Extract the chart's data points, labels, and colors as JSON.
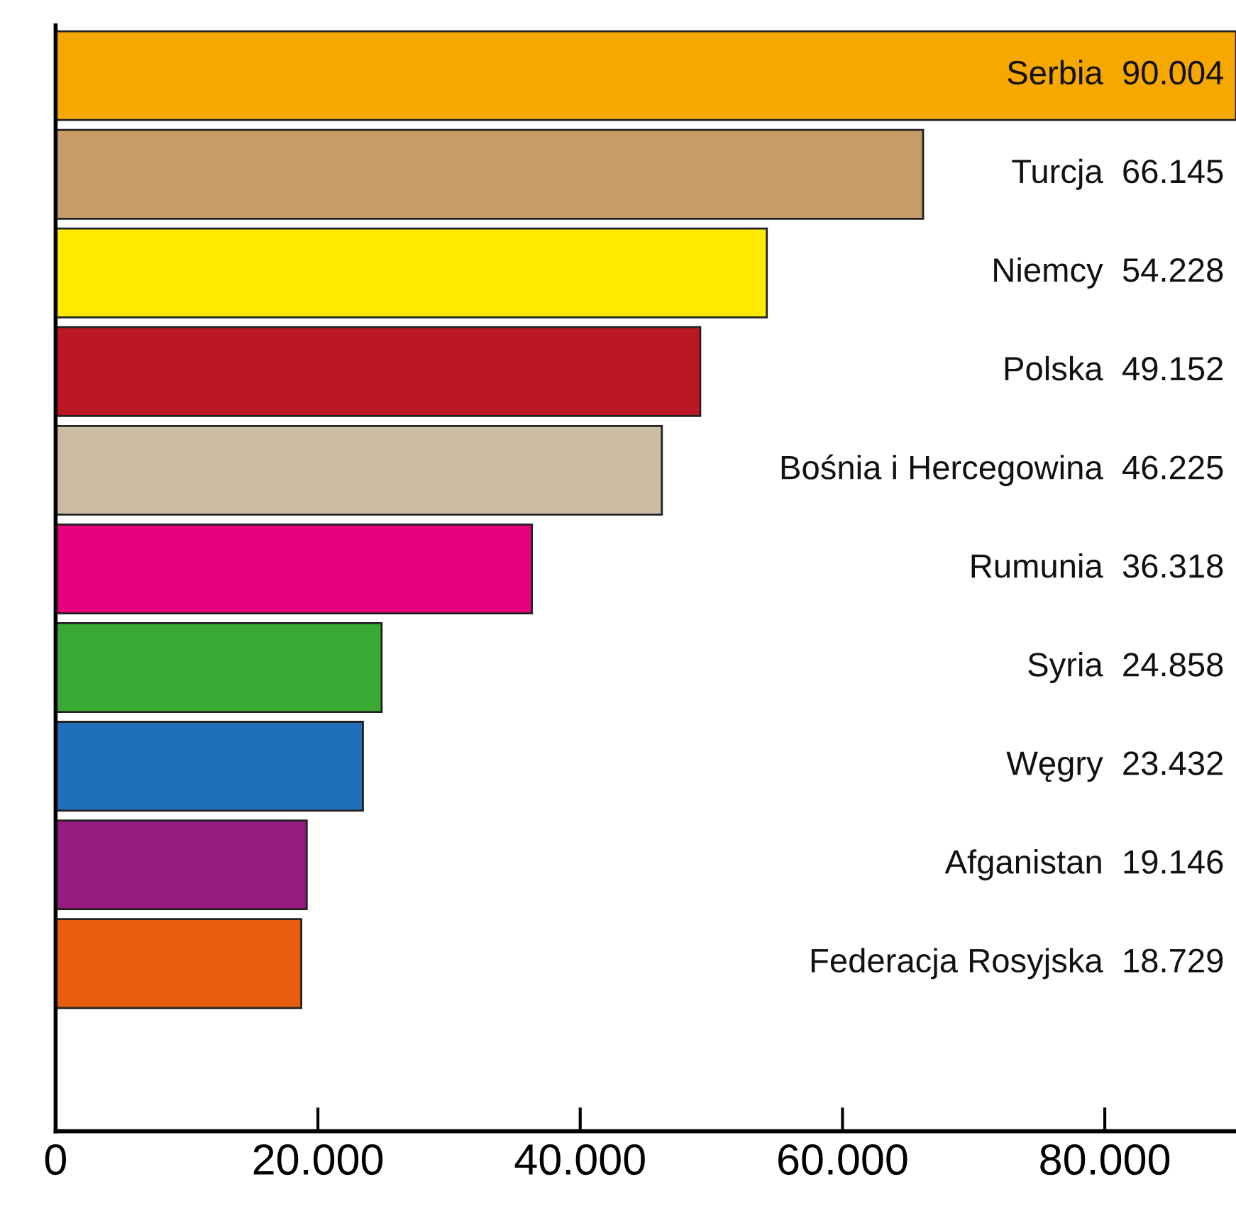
{
  "chart_data": {
    "type": "bar",
    "orientation": "horizontal",
    "categories": [
      "Serbia",
      "Turcja",
      "Niemcy",
      "Polska",
      "Bośnia i Hercegowina",
      "Rumunia",
      "Syria",
      "Węgry",
      "Afganistan",
      "Federacja Rosyjska"
    ],
    "values": [
      90004,
      66145,
      54228,
      49152,
      46225,
      36318,
      24858,
      23432,
      19146,
      18729
    ],
    "value_labels": [
      "90.004",
      "66.145",
      "54.228",
      "49.152",
      "46.225",
      "36.318",
      "24.858",
      "23.432",
      "19.146",
      "18.729"
    ],
    "colors": [
      "#f7a800",
      "#c89c64",
      "#ffea00",
      "#bb1823",
      "#cbbca3",
      "#e6007e",
      "#3aaa35",
      "#1f70b8",
      "#951b81",
      "#e95d0f"
    ],
    "xlim": [
      0,
      90004
    ],
    "xticks": [
      0,
      {
        "value": 20000,
        "label": "20.000"
      },
      {
        "value": 40000,
        "label": "40.000"
      },
      {
        "value": 60000,
        "label": "60.000"
      },
      {
        "value": 80000,
        "label": "80.000"
      }
    ],
    "tick_labels": "x",
    "grid": false,
    "legend": false
  }
}
